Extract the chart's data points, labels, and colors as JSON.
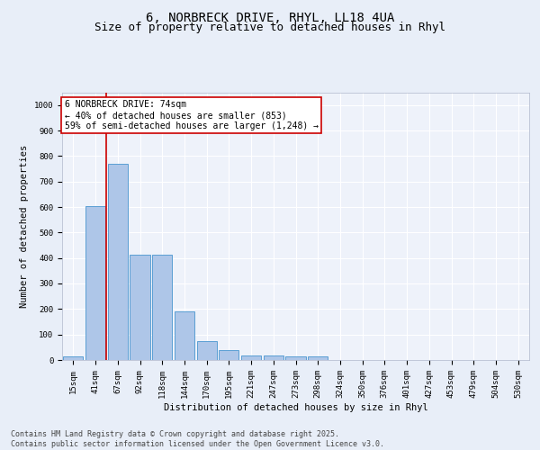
{
  "title1": "6, NORBRECK DRIVE, RHYL, LL18 4UA",
  "title2": "Size of property relative to detached houses in Rhyl",
  "xlabel": "Distribution of detached houses by size in Rhyl",
  "ylabel": "Number of detached properties",
  "categories": [
    "15sqm",
    "41sqm",
    "67sqm",
    "92sqm",
    "118sqm",
    "144sqm",
    "170sqm",
    "195sqm",
    "221sqm",
    "247sqm",
    "273sqm",
    "298sqm",
    "324sqm",
    "350sqm",
    "376sqm",
    "401sqm",
    "427sqm",
    "453sqm",
    "479sqm",
    "504sqm",
    "530sqm"
  ],
  "values": [
    15,
    605,
    770,
    412,
    412,
    192,
    75,
    38,
    18,
    18,
    13,
    13,
    0,
    0,
    0,
    0,
    0,
    0,
    0,
    0,
    0
  ],
  "bar_color": "#aec6e8",
  "bar_edge_color": "#5a9fd4",
  "vline_color": "#cc0000",
  "annotation_text": "6 NORBRECK DRIVE: 74sqm\n← 40% of detached houses are smaller (853)\n59% of semi-detached houses are larger (1,248) →",
  "annotation_box_color": "#ffffff",
  "annotation_box_edge": "#cc0000",
  "ylim": [
    0,
    1050
  ],
  "yticks": [
    0,
    100,
    200,
    300,
    400,
    500,
    600,
    700,
    800,
    900,
    1000
  ],
  "bg_color": "#e8eef8",
  "plot_bg_color": "#eef2fa",
  "grid_color": "#ffffff",
  "footer": "Contains HM Land Registry data © Crown copyright and database right 2025.\nContains public sector information licensed under the Open Government Licence v3.0.",
  "title_fontsize": 10,
  "subtitle_fontsize": 9,
  "axis_label_fontsize": 7.5,
  "tick_fontsize": 6.5,
  "annotation_fontsize": 7,
  "footer_fontsize": 6
}
